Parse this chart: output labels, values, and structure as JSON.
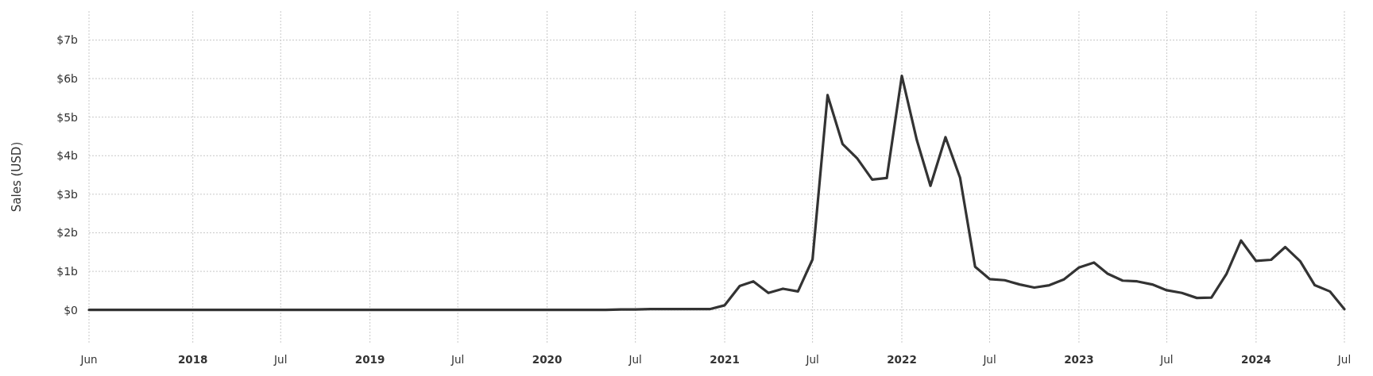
{
  "chart_data": {
    "type": "line",
    "ylabel": "Sales (USD)",
    "x": [
      "2017-06",
      "2017-07",
      "2017-08",
      "2017-09",
      "2017-10",
      "2017-11",
      "2017-12",
      "2018-01",
      "2018-02",
      "2018-03",
      "2018-04",
      "2018-05",
      "2018-06",
      "2018-07",
      "2018-08",
      "2018-09",
      "2018-10",
      "2018-11",
      "2018-12",
      "2019-01",
      "2019-02",
      "2019-03",
      "2019-04",
      "2019-05",
      "2019-06",
      "2019-07",
      "2019-08",
      "2019-09",
      "2019-10",
      "2019-11",
      "2019-12",
      "2020-01",
      "2020-02",
      "2020-03",
      "2020-04",
      "2020-05",
      "2020-06",
      "2020-07",
      "2020-08",
      "2020-09",
      "2020-10",
      "2020-11",
      "2020-12",
      "2021-01",
      "2021-02",
      "2021-03",
      "2021-04",
      "2021-05",
      "2021-06",
      "2021-07",
      "2021-08",
      "2021-09",
      "2021-10",
      "2021-11",
      "2021-12",
      "2022-01",
      "2022-02",
      "2022-03",
      "2022-04",
      "2022-05",
      "2022-06",
      "2022-07",
      "2022-08",
      "2022-09",
      "2022-10",
      "2022-11",
      "2022-12",
      "2023-01",
      "2023-02",
      "2023-03",
      "2023-04",
      "2023-05",
      "2023-06",
      "2023-07",
      "2023-08",
      "2023-09",
      "2023-10",
      "2023-11",
      "2023-12",
      "2024-01",
      "2024-02",
      "2024-03",
      "2024-04",
      "2024-05",
      "2024-06",
      "2024-07"
    ],
    "series": [
      {
        "color": "#333333",
        "values": [
          0,
          0,
          0,
          0,
          0,
          0,
          0,
          0,
          0,
          0,
          0,
          0,
          0,
          0,
          0,
          0,
          0,
          0,
          0,
          0,
          0,
          0,
          0,
          0,
          0,
          0,
          0,
          0,
          0,
          0,
          0,
          0,
          0,
          0,
          0,
          0,
          0.01,
          0.01,
          0.02,
          0.02,
          0.02,
          0.02,
          0.02,
          0.12,
          0.62,
          0.74,
          0.44,
          0.55,
          0.48,
          1.31,
          5.57,
          4.3,
          3.93,
          3.38,
          3.42,
          6.07,
          4.4,
          3.22,
          4.48,
          3.43,
          1.12,
          0.8,
          0.77,
          0.66,
          0.58,
          0.64,
          0.79,
          1.1,
          1.23,
          0.94,
          0.76,
          0.74,
          0.66,
          0.51,
          0.44,
          0.31,
          0.32,
          0.93,
          1.8,
          1.27,
          1.3,
          1.63,
          1.26,
          0.64,
          0.48,
          0.02
        ]
      }
    ],
    "xlim": [
      "2017-06",
      "2024-07"
    ],
    "xticks": [
      {
        "value": "2017-06",
        "label": "Jun"
      },
      {
        "value": "2018-01",
        "label": "2018"
      },
      {
        "value": "2018-07",
        "label": "Jul"
      },
      {
        "value": "2019-01",
        "label": "2019"
      },
      {
        "value": "2019-07",
        "label": "Jul"
      },
      {
        "value": "2020-01",
        "label": "2020"
      },
      {
        "value": "2020-07",
        "label": "Jul"
      },
      {
        "value": "2021-01",
        "label": "2021"
      },
      {
        "value": "2021-07",
        "label": "Jul"
      },
      {
        "value": "2022-01",
        "label": "2022"
      },
      {
        "value": "2022-07",
        "label": "Jul"
      },
      {
        "value": "2023-01",
        "label": "2023"
      },
      {
        "value": "2023-07",
        "label": "Jul"
      },
      {
        "value": "2024-01",
        "label": "2024"
      },
      {
        "value": "2024-07",
        "label": "Jul"
      }
    ],
    "ylim": [
      -0.85,
      7.75
    ],
    "yticks": [
      {
        "value": 0,
        "label": "$0"
      },
      {
        "value": 1,
        "label": "$1b"
      },
      {
        "value": 2,
        "label": "$2b"
      },
      {
        "value": 3,
        "label": "$3b"
      },
      {
        "value": 4,
        "label": "$4b"
      },
      {
        "value": 5,
        "label": "$5b"
      },
      {
        "value": 6,
        "label": "$6b"
      },
      {
        "value": 7,
        "label": "$7b"
      }
    ],
    "grid": true,
    "marker": "none",
    "line_style": "solid"
  }
}
